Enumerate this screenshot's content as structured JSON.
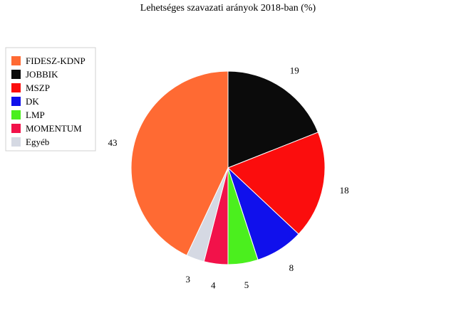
{
  "chart_data": {
    "type": "pie",
    "title": "Lehetséges szavazati arányok 2018-ban (%)",
    "slices": [
      {
        "label": "JOBBIK",
        "value": 19,
        "color": "#0b0b0b"
      },
      {
        "label": "MSZP",
        "value": 18,
        "color": "#fb0d0d"
      },
      {
        "label": "DK",
        "value": 8,
        "color": "#1010ec"
      },
      {
        "label": "LMP",
        "value": 5,
        "color": "#4bef1e"
      },
      {
        "label": "MOMENTUM",
        "value": 4,
        "color": "#f2124a"
      },
      {
        "label": "Egyéb",
        "value": 3,
        "color": "#d5d9e3"
      },
      {
        "label": "FIDESZ-KDNP",
        "value": 43,
        "color": "#ff6a33"
      }
    ],
    "legend": {
      "position": "left",
      "items": [
        {
          "label": "FIDESZ-KDNP",
          "color": "#ff6a33"
        },
        {
          "label": "JOBBIK",
          "color": "#0b0b0b"
        },
        {
          "label": "MSZP",
          "color": "#fb0d0d"
        },
        {
          "label": "DK",
          "color": "#1010ec"
        },
        {
          "label": "LMP",
          "color": "#4bef1e"
        },
        {
          "label": "MOMENTUM",
          "color": "#f2124a"
        },
        {
          "label": "Egyéb",
          "color": "#d5d9e3"
        }
      ]
    },
    "show_values": true
  }
}
